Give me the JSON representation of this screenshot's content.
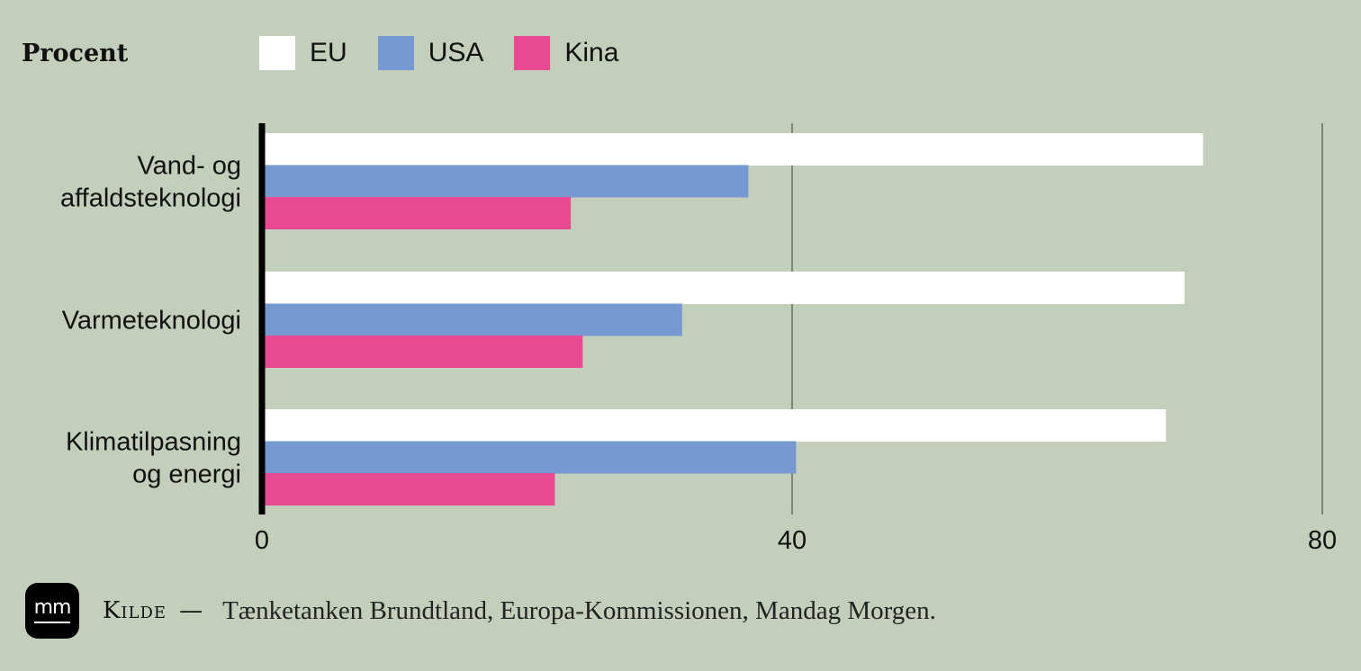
{
  "chart_data": {
    "type": "bar",
    "orientation": "horizontal",
    "unit_label": "Procent",
    "categories": [
      "Vand- og affaldsteknologi",
      "Varmeteknologi",
      "Klimatilpasning og energi"
    ],
    "category_lines": [
      [
        "Vand- og",
        "affaldsteknologi"
      ],
      [
        "Varmeteknologi"
      ],
      [
        "Klimatilpasning",
        "og energi"
      ]
    ],
    "series": [
      {
        "name": "EU",
        "values": [
          71,
          69.6,
          68.2
        ],
        "color": "#ffffff"
      },
      {
        "name": "USA",
        "values": [
          36.7,
          31.7,
          40.3
        ],
        "color": "#7799d1"
      },
      {
        "name": "Kina",
        "values": [
          23.3,
          24.2,
          22.1
        ],
        "color": "#e84a91"
      }
    ],
    "xlim": [
      0,
      80
    ],
    "xticks": [
      0,
      40,
      80
    ],
    "xtick_labels": [
      "0",
      "40",
      "80"
    ],
    "grid": true,
    "legend_position": "top"
  },
  "footer": {
    "logo_text": "mm",
    "source_label": "Kilde",
    "dash": "—",
    "source_text": "Tænketanken Brundtland, Europa-Kommissionen, Mandag Morgen."
  }
}
